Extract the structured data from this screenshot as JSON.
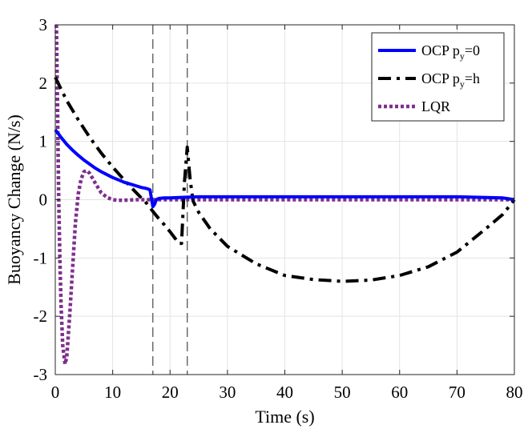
{
  "chart_data": {
    "type": "line",
    "title": "",
    "xlabel": "Time (s)",
    "ylabel": "Buoyancy Change (N/s)",
    "xlim": [
      0,
      80
    ],
    "ylim": [
      -3,
      3
    ],
    "xticks": [
      "0",
      "10",
      "20",
      "30",
      "40",
      "50",
      "60",
      "70",
      "80"
    ],
    "yticks": [
      "3",
      "2",
      "1",
      "0",
      "-1",
      "-2",
      "-3"
    ],
    "grid": true,
    "legend_position": "top-right",
    "vlines": [
      17,
      23
    ],
    "series": [
      {
        "name": "OCP p_y=0",
        "label_main": "OCP p",
        "label_sub": "y",
        "label_tail": "=0",
        "color": "#0000ff",
        "style": "solid",
        "x": [
          0,
          1,
          2,
          3,
          4,
          5,
          6,
          7,
          8,
          9,
          10,
          11,
          12,
          13,
          14,
          15,
          16,
          16.5,
          17,
          17.3,
          17.6,
          18,
          19,
          20,
          22,
          25,
          30,
          40,
          50,
          60,
          70,
          78,
          80
        ],
        "y": [
          1.2,
          1.07,
          0.95,
          0.85,
          0.76,
          0.68,
          0.61,
          0.54,
          0.48,
          0.43,
          0.38,
          0.34,
          0.3,
          0.27,
          0.24,
          0.21,
          0.19,
          0.17,
          -0.12,
          -0.08,
          0.0,
          0.02,
          0.03,
          0.03,
          0.04,
          0.05,
          0.05,
          0.05,
          0.05,
          0.05,
          0.05,
          0.03,
          0.0
        ]
      },
      {
        "name": "OCP p_y=h",
        "label_main": "OCP p",
        "label_sub": "y",
        "label_tail": "=h",
        "color": "#000000",
        "style": "dashdot",
        "x": [
          0,
          2,
          4,
          6,
          8,
          10,
          12,
          14,
          16,
          17,
          18,
          19,
          20,
          21,
          21.5,
          22,
          22.5,
          23,
          23.5,
          24,
          25,
          27,
          30,
          35,
          40,
          45,
          50,
          55,
          60,
          65,
          70,
          75,
          78,
          80
        ],
        "y": [
          2.1,
          1.7,
          1.37,
          1.07,
          0.8,
          0.56,
          0.34,
          0.13,
          -0.07,
          -0.2,
          -0.32,
          -0.43,
          -0.55,
          -0.68,
          -0.75,
          -0.75,
          0.3,
          0.9,
          0.35,
          -0.02,
          -0.22,
          -0.5,
          -0.8,
          -1.1,
          -1.3,
          -1.37,
          -1.4,
          -1.38,
          -1.3,
          -1.15,
          -0.9,
          -0.5,
          -0.25,
          0.0
        ]
      },
      {
        "name": "LQR",
        "label_main": "LQR",
        "label_sub": "",
        "label_tail": "",
        "color": "#7e2f8e",
        "style": "dotted",
        "x": [
          0.2,
          0.4,
          0.6,
          0.8,
          1.0,
          1.3,
          1.7,
          2.0,
          2.5,
          3.0,
          3.5,
          4.0,
          4.5,
          5.0,
          5.5,
          6.0,
          7.0,
          8.0,
          9.0,
          10.0,
          11.0,
          12.0,
          14.0,
          20.0,
          40.0,
          60.0,
          80.0
        ],
        "y": [
          3.0,
          1.5,
          0.0,
          -1.0,
          -1.8,
          -2.5,
          -2.82,
          -2.7,
          -2.0,
          -1.2,
          -0.4,
          0.1,
          0.35,
          0.48,
          0.5,
          0.45,
          0.28,
          0.12,
          0.04,
          0.0,
          -0.01,
          -0.01,
          0.0,
          0.0,
          0.0,
          0.0,
          0.0
        ]
      }
    ]
  }
}
